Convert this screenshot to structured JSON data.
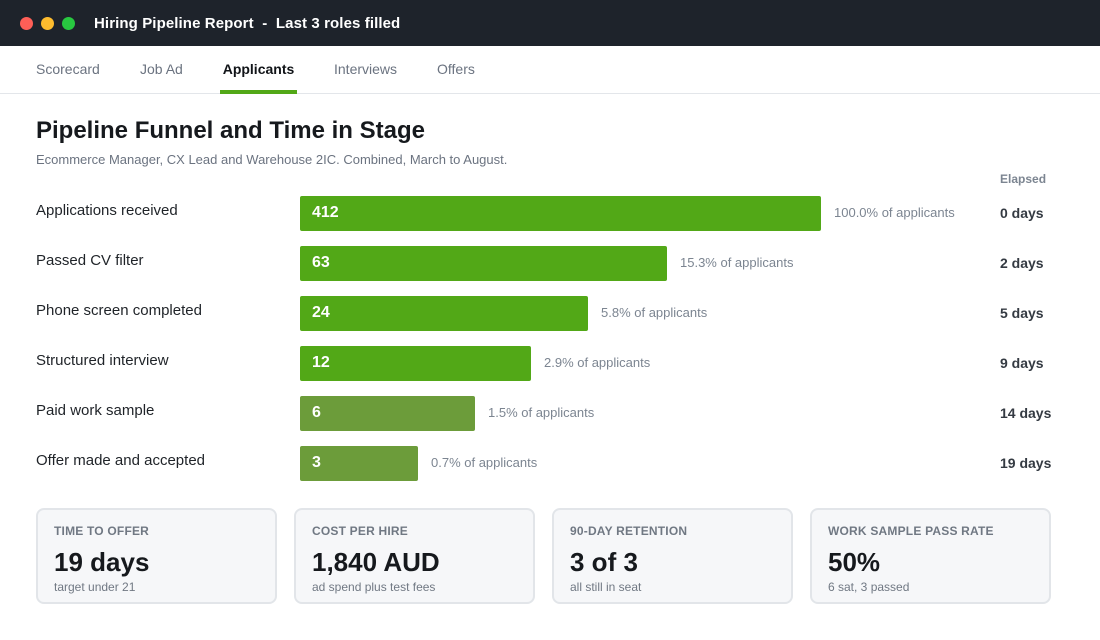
{
  "window": {
    "title": "Hiring Pipeline Report  -  Last 3 roles filled"
  },
  "tabs": [
    {
      "label": "Scorecard",
      "active": false
    },
    {
      "label": "Job Ad",
      "active": false
    },
    {
      "label": "Applicants",
      "active": true
    },
    {
      "label": "Interviews",
      "active": false
    },
    {
      "label": "Offers",
      "active": false
    }
  ],
  "report": {
    "title": "Pipeline Funnel and Time in Stage",
    "subtitle": "Ecommerce Manager, CX Lead and Warehouse 2IC. Combined, March to August.",
    "elapsed_header": "Elapsed",
    "max_count": 412,
    "stages": [
      {
        "label": "Applications received",
        "count": 412,
        "share": "100.0% of applicants",
        "elapsed": "0 days",
        "tone": "primary"
      },
      {
        "label": "Passed CV filter",
        "count": 63,
        "share": "15.3% of applicants",
        "elapsed": "2 days",
        "tone": "primary"
      },
      {
        "label": "Phone screen completed",
        "count": 24,
        "share": "5.8% of applicants",
        "elapsed": "5 days",
        "tone": "primary"
      },
      {
        "label": "Structured interview",
        "count": 12,
        "share": "2.9% of applicants",
        "elapsed": "9 days",
        "tone": "primary"
      },
      {
        "label": "Paid work sample",
        "count": 6,
        "share": "1.5% of applicants",
        "elapsed": "14 days",
        "tone": "muted"
      },
      {
        "label": "Offer made and accepted",
        "count": 3,
        "share": "0.7% of applicants",
        "elapsed": "19 days",
        "tone": "muted"
      }
    ]
  },
  "colors": {
    "accent": "#52a817",
    "bar_primary": "#52a817",
    "bar_muted": "#6c9c3a",
    "titlebar": "#1e232b"
  },
  "cards": [
    {
      "label": "TIME TO OFFER",
      "value": "19 days",
      "note": "target under 21"
    },
    {
      "label": "COST PER HIRE",
      "value": "1,840 AUD",
      "note": "ad spend plus test fees"
    },
    {
      "label": "90-DAY RETENTION",
      "value": "3 of 3",
      "note": "all still in seat"
    },
    {
      "label": "WORK SAMPLE PASS RATE",
      "value": "50%",
      "note": "6 sat, 3 passed"
    }
  ]
}
